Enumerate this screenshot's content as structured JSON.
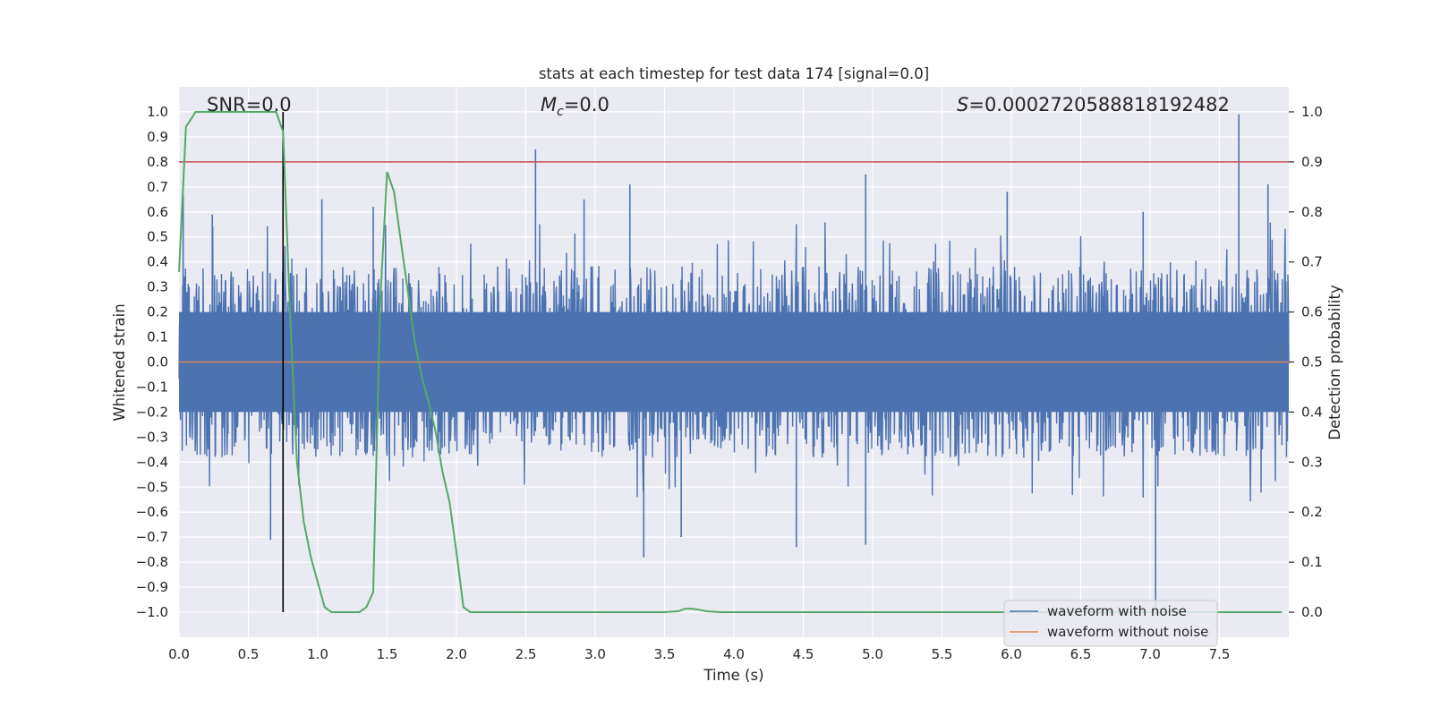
{
  "chart_data": {
    "type": "line",
    "title": "stats at each timestep for test data 174 [signal=0.0]",
    "xlabel": "Time (s)",
    "ylabel_left": "Whitened strain",
    "ylabel_right": "Detection probability",
    "xlim": [
      0.0,
      8.0
    ],
    "ylim_left": [
      -1.1,
      1.1
    ],
    "ylim_right": [
      -0.05,
      1.05
    ],
    "x_ticks": [
      0.0,
      0.5,
      1.0,
      1.5,
      2.0,
      2.5,
      3.0,
      3.5,
      4.0,
      4.5,
      5.0,
      5.5,
      6.0,
      6.5,
      7.0,
      7.5
    ],
    "x_tick_labels": [
      "0.0",
      "0.5",
      "1.0",
      "1.5",
      "2.0",
      "2.5",
      "3.0",
      "3.5",
      "4.0",
      "4.5",
      "5.0",
      "5.5",
      "6.0",
      "6.5",
      "7.0",
      "7.5"
    ],
    "y_left_ticks": [
      1.0,
      0.9,
      0.8,
      0.7,
      0.6,
      0.5,
      0.4,
      0.3,
      0.2,
      0.1,
      0.0,
      -0.1,
      -0.2,
      -0.3,
      -0.4,
      -0.5,
      -0.6,
      -0.7,
      -0.8,
      -0.9,
      -1.0
    ],
    "y_left_tick_labels": [
      "1.0",
      "0.9",
      "0.8",
      "0.7",
      "0.6",
      "0.5",
      "0.4",
      "0.3",
      "0.2",
      "0.1",
      "0.0",
      "−0.1",
      "−0.2",
      "−0.3",
      "−0.4",
      "−0.5",
      "−0.6",
      "−0.7",
      "−0.8",
      "−0.9",
      "−1.0"
    ],
    "y_right_ticks": [
      1.0,
      0.9,
      0.8,
      0.7,
      0.6,
      0.5,
      0.4,
      0.3,
      0.2,
      0.1,
      0.0
    ],
    "y_right_tick_labels": [
      "1.0",
      "0.9",
      "0.8",
      "0.7",
      "0.6",
      "0.5",
      "0.4",
      "0.3",
      "0.2",
      "0.1",
      "0.0"
    ],
    "annotations": {
      "snr": "SNR=0.0",
      "mc_symbol": "M",
      "mc_subscript": "c",
      "mc_value": "=0.0",
      "s_symbol": "S",
      "s_value": "=0.0002720588818192482"
    },
    "threshold": 0.9,
    "marker_time": 0.75,
    "noise_envelope": {
      "typical_range": [
        -0.45,
        0.45
      ],
      "peaks": [
        {
          "t": 0.03,
          "v": 0.67
        },
        {
          "t": 0.24,
          "v": 0.59
        },
        {
          "t": 0.66,
          "v": -0.71
        },
        {
          "t": 1.03,
          "v": 0.65
        },
        {
          "t": 1.4,
          "v": 0.62
        },
        {
          "t": 2.57,
          "v": 0.85
        },
        {
          "t": 2.92,
          "v": 0.65
        },
        {
          "t": 3.25,
          "v": 0.71
        },
        {
          "t": 3.35,
          "v": -0.78
        },
        {
          "t": 3.62,
          "v": -0.7
        },
        {
          "t": 4.45,
          "v": -0.74
        },
        {
          "t": 4.95,
          "v": 0.75
        },
        {
          "t": 4.95,
          "v": -0.73
        },
        {
          "t": 5.97,
          "v": 0.68
        },
        {
          "t": 6.95,
          "v": 0.6
        },
        {
          "t": 7.04,
          "v": -0.98
        },
        {
          "t": 7.64,
          "v": 0.99
        },
        {
          "t": 7.85,
          "v": 0.71
        }
      ]
    },
    "series": [
      {
        "name": "waveform with noise",
        "color": "#4c72b0",
        "kind": "noise"
      },
      {
        "name": "waveform without noise",
        "color": "#dd8452",
        "kind": "flat",
        "value": 0.0
      },
      {
        "name": "detection probability",
        "color": "#55a868",
        "axis": "right",
        "x": [
          0.0,
          0.05,
          0.12,
          0.2,
          0.3,
          0.5,
          0.65,
          0.7,
          0.75,
          0.8,
          0.85,
          0.9,
          0.95,
          1.0,
          1.05,
          1.1,
          1.2,
          1.3,
          1.35,
          1.4,
          1.45,
          1.5,
          1.55,
          1.6,
          1.65,
          1.7,
          1.75,
          1.8,
          1.85,
          1.9,
          1.95,
          2.0,
          2.05,
          2.1,
          3.5,
          3.6,
          3.65,
          3.7,
          3.75,
          3.8,
          3.9,
          4.0,
          7.95
        ],
        "y": [
          0.68,
          0.97,
          1.0,
          1.0,
          1.0,
          1.0,
          1.0,
          1.0,
          0.96,
          0.6,
          0.3,
          0.18,
          0.11,
          0.06,
          0.01,
          0.0,
          0.0,
          0.0,
          0.01,
          0.04,
          0.62,
          0.88,
          0.84,
          0.74,
          0.64,
          0.54,
          0.47,
          0.42,
          0.36,
          0.28,
          0.22,
          0.12,
          0.01,
          0.0,
          0.0,
          0.002,
          0.007,
          0.007,
          0.005,
          0.002,
          0.0,
          0.0,
          0.0
        ]
      }
    ],
    "legend": {
      "placement": "lower-right",
      "entries": [
        {
          "label": "waveform with noise",
          "color": "#4c72b0"
        },
        {
          "label": "waveform without noise",
          "color": "#dd8452"
        }
      ]
    }
  }
}
